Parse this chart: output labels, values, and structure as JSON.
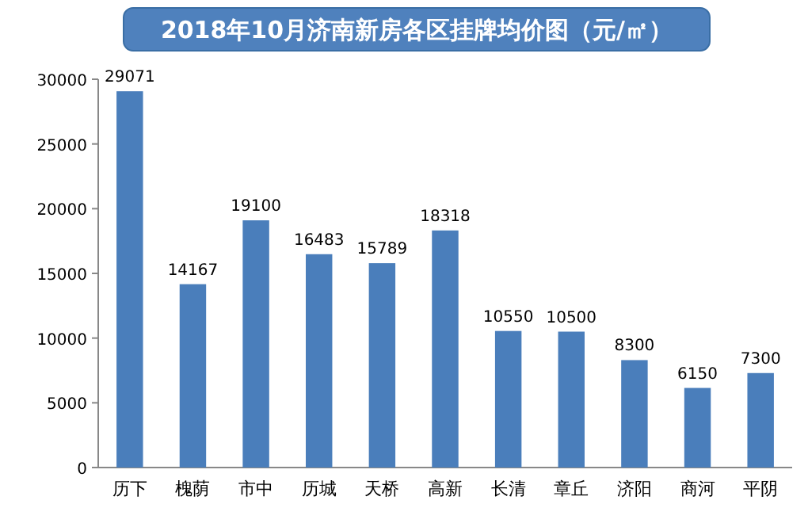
{
  "chart_data": {
    "type": "bar",
    "title": "2018年10月济南新房各区挂牌均价图（元/㎡）",
    "categories": [
      "历下",
      "槐荫",
      "市中",
      "历城",
      "天桥",
      "高新",
      "长清",
      "章丘",
      "济阳",
      "商河",
      "平阴"
    ],
    "values": [
      29071,
      14167,
      19100,
      16483,
      15789,
      18318,
      10550,
      10500,
      8300,
      6150,
      7300
    ],
    "color": "#4a7ebb",
    "ylim": [
      0,
      30000
    ],
    "yticks": [
      0,
      5000,
      10000,
      15000,
      20000,
      25000,
      30000
    ],
    "data_labels": true,
    "grid": false
  }
}
